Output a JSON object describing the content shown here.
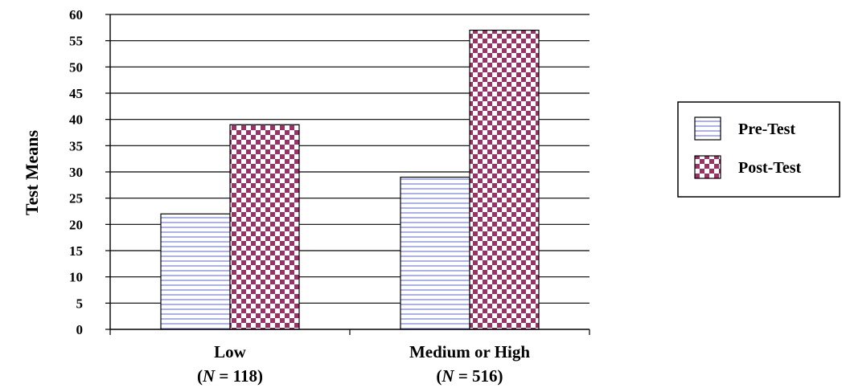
{
  "chart_data": {
    "type": "bar",
    "title": "",
    "xlabel": "",
    "ylabel": "Test Means",
    "ylim": [
      0,
      60
    ],
    "yticks": [
      0,
      5,
      10,
      15,
      20,
      25,
      30,
      35,
      40,
      45,
      50,
      55,
      60
    ],
    "grid": true,
    "legend_position": "right",
    "categories": [
      {
        "name": "Low",
        "n_prefix": "(",
        "n_symbol": "N",
        "n_suffix": " = 118)"
      },
      {
        "name": "Medium or High",
        "n_prefix": "(",
        "n_symbol": "N",
        "n_suffix": " = 516)"
      }
    ],
    "series": [
      {
        "name": "Pre-Test",
        "values": [
          22,
          29
        ],
        "pattern": "horizontal-stripes",
        "color": "#aab0f0"
      },
      {
        "name": "Post-Test",
        "values": [
          39,
          57
        ],
        "pattern": "checkerboard",
        "color": "#993366"
      }
    ]
  }
}
